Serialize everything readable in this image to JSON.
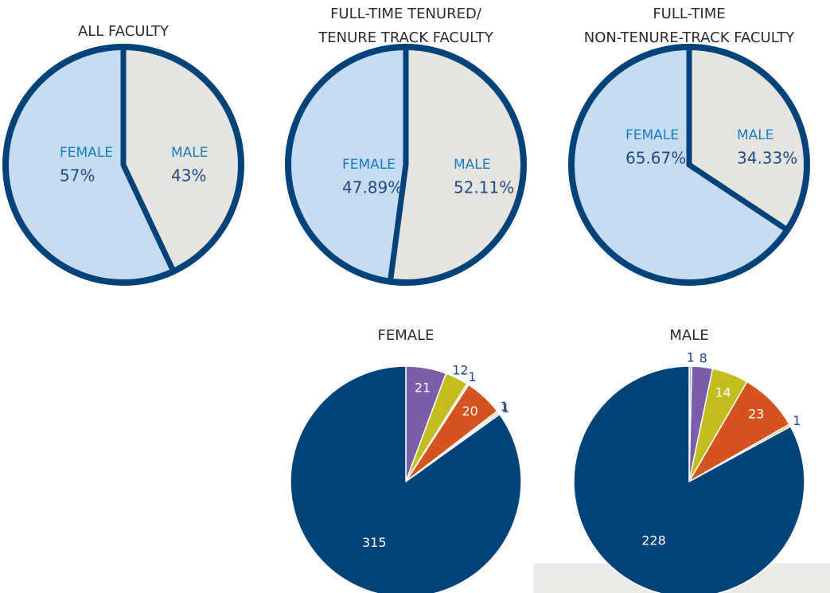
{
  "chart_data": [
    {
      "type": "pie",
      "title": [
        "ALL FACULTY"
      ],
      "categories": [
        "FEMALE",
        "MALE"
      ],
      "values": [
        57,
        43
      ],
      "value_labels": [
        "57%",
        "43%"
      ],
      "colors": [
        "#c6ddf1",
        "#e6e4df"
      ]
    },
    {
      "type": "pie",
      "title": [
        "FULL-TIME TENURED/",
        "TENURE TRACK FACULTY"
      ],
      "categories": [
        "FEMALE",
        "MALE"
      ],
      "values": [
        47.89,
        52.11
      ],
      "value_labels": [
        "47.89%",
        "52.11%"
      ],
      "colors": [
        "#c6ddf1",
        "#e6e4df"
      ]
    },
    {
      "type": "pie",
      "title": [
        "FULL-TIME",
        "NON-TENURE-TRACK FACULTY"
      ],
      "categories": [
        "FEMALE",
        "MALE"
      ],
      "values": [
        65.67,
        34.33
      ],
      "value_labels": [
        "65.67%",
        "34.33%"
      ],
      "colors": [
        "#c6ddf1",
        "#e6e4df"
      ]
    },
    {
      "type": "pie",
      "title": [
        "FEMALE"
      ],
      "values": [
        21,
        12,
        1,
        20,
        1,
        1,
        315
      ],
      "colors": [
        "#7b5ea7",
        "#c3bd1f",
        "#f2f2f2",
        "#d4531f",
        "#f0c36d",
        "#9cc3e6",
        "#00427a"
      ]
    },
    {
      "type": "pie",
      "title": [
        "MALE"
      ],
      "values": [
        1,
        8,
        14,
        23,
        1,
        228
      ],
      "colors": [
        "#9cc3e6",
        "#7b5ea7",
        "#c3bd1f",
        "#d4531f",
        "#f0c36d",
        "#00427a"
      ]
    }
  ]
}
